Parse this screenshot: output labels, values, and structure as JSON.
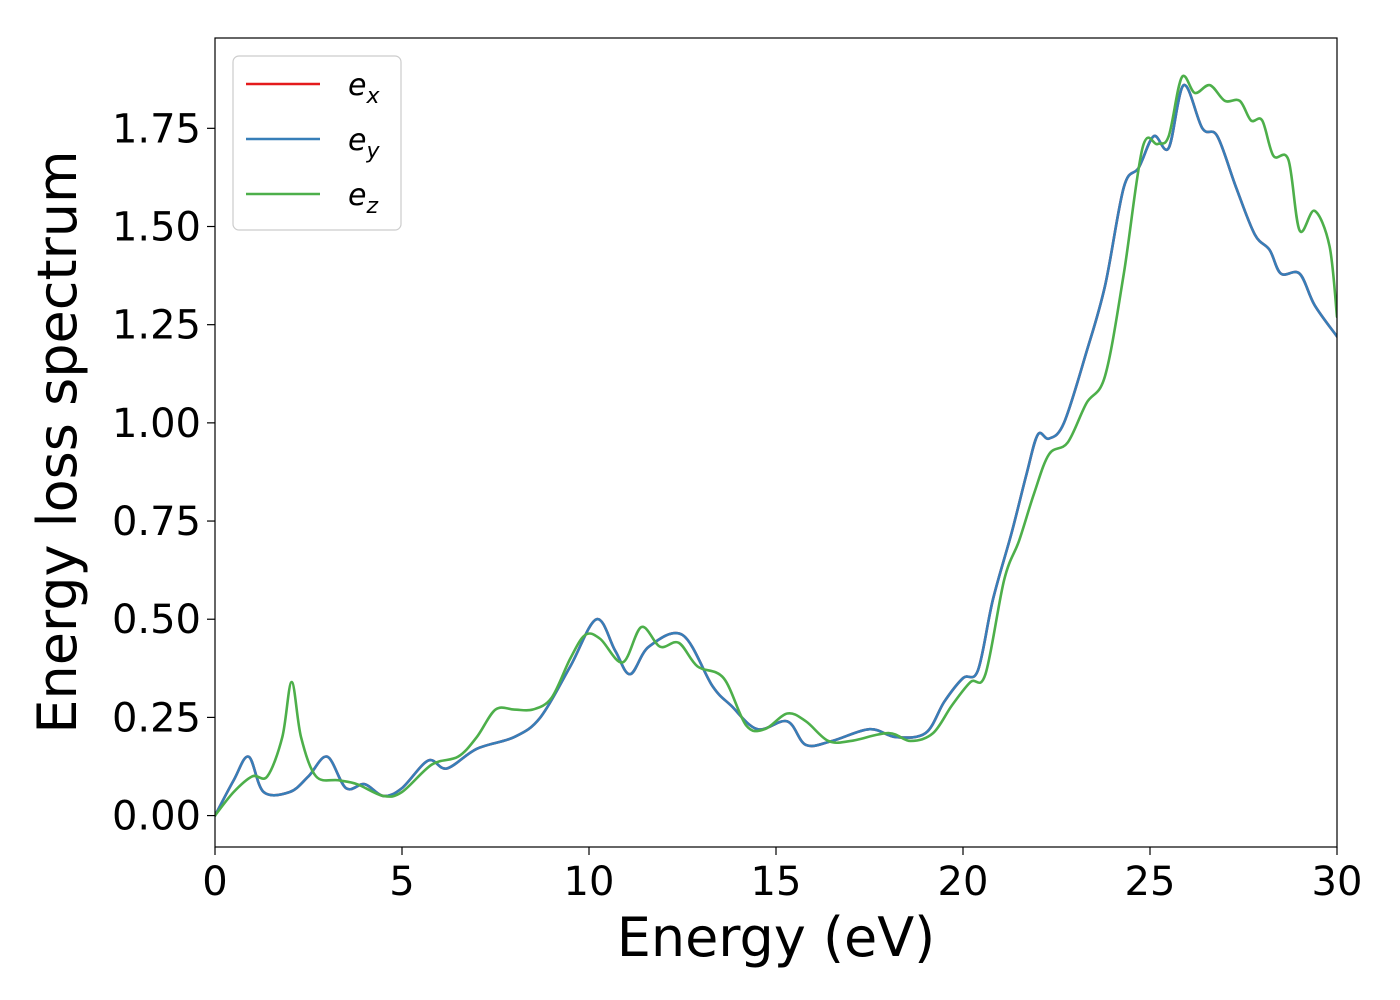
{
  "chart_data": {
    "type": "line",
    "xlabel": "Energy (eV)",
    "ylabel": "Energy loss spectrum",
    "xlim": [
      0,
      30
    ],
    "ylim": [
      -0.08,
      1.98
    ],
    "xticks": [
      0,
      5,
      10,
      15,
      20,
      25,
      30
    ],
    "xtick_labels": [
      "0",
      "5",
      "10",
      "15",
      "20",
      "25",
      "30"
    ],
    "yticks": [
      0.0,
      0.25,
      0.5,
      0.75,
      1.0,
      1.25,
      1.5,
      1.75
    ],
    "ytick_labels": [
      "0.00",
      "0.25",
      "0.50",
      "0.75",
      "1.00",
      "1.25",
      "1.50",
      "1.75"
    ],
    "grid": false,
    "legend": {
      "placement": "top-left",
      "entries": [
        {
          "base": "e",
          "sub": "x",
          "color": "#e41a1c"
        },
        {
          "base": "e",
          "sub": "y",
          "color": "#377eb8"
        },
        {
          "base": "e",
          "sub": "z",
          "color": "#4daf4a"
        }
      ]
    },
    "series": [
      {
        "name": "e_x",
        "color": "#e41a1c",
        "x": [
          0,
          0.5,
          0.9,
          1.3,
          2.0,
          2.5,
          3.0,
          3.5,
          4.0,
          4.5,
          5.0,
          5.7,
          6.2,
          7.0,
          8.0,
          8.7,
          9.5,
          10.2,
          10.7,
          11.1,
          11.6,
          12.5,
          13.3,
          13.8,
          14.5,
          15.3,
          15.8,
          16.5,
          17.5,
          18.2,
          19.0,
          19.5,
          20.0,
          20.4,
          20.8,
          21.3,
          21.7,
          22.0,
          22.3,
          22.7,
          23.3,
          23.8,
          24.3,
          24.7,
          25.1,
          25.5,
          25.9,
          26.4,
          26.8,
          27.3,
          27.8,
          28.2,
          28.5,
          29.0,
          29.4,
          30.0
        ],
        "y": [
          0.0,
          0.09,
          0.15,
          0.06,
          0.06,
          0.1,
          0.15,
          0.07,
          0.08,
          0.05,
          0.07,
          0.14,
          0.12,
          0.17,
          0.2,
          0.25,
          0.38,
          0.5,
          0.42,
          0.36,
          0.43,
          0.46,
          0.33,
          0.28,
          0.22,
          0.24,
          0.18,
          0.19,
          0.22,
          0.2,
          0.21,
          0.29,
          0.35,
          0.37,
          0.55,
          0.72,
          0.87,
          0.97,
          0.96,
          1.0,
          1.18,
          1.35,
          1.6,
          1.65,
          1.73,
          1.7,
          1.86,
          1.75,
          1.73,
          1.6,
          1.48,
          1.44,
          1.38,
          1.38,
          1.3,
          1.22
        ]
      },
      {
        "name": "e_y",
        "color": "#377eb8",
        "x": [
          0,
          0.5,
          0.9,
          1.3,
          2.0,
          2.5,
          3.0,
          3.5,
          4.0,
          4.5,
          5.0,
          5.7,
          6.2,
          7.0,
          8.0,
          8.7,
          9.5,
          10.2,
          10.7,
          11.1,
          11.6,
          12.5,
          13.3,
          13.8,
          14.5,
          15.3,
          15.8,
          16.5,
          17.5,
          18.2,
          19.0,
          19.5,
          20.0,
          20.4,
          20.8,
          21.3,
          21.7,
          22.0,
          22.3,
          22.7,
          23.3,
          23.8,
          24.3,
          24.7,
          25.1,
          25.5,
          25.9,
          26.4,
          26.8,
          27.3,
          27.8,
          28.2,
          28.5,
          29.0,
          29.4,
          30.0
        ],
        "y": [
          0.0,
          0.09,
          0.15,
          0.06,
          0.06,
          0.1,
          0.15,
          0.07,
          0.08,
          0.05,
          0.07,
          0.14,
          0.12,
          0.17,
          0.2,
          0.25,
          0.38,
          0.5,
          0.42,
          0.36,
          0.43,
          0.46,
          0.33,
          0.28,
          0.22,
          0.24,
          0.18,
          0.19,
          0.22,
          0.2,
          0.21,
          0.29,
          0.35,
          0.37,
          0.55,
          0.72,
          0.87,
          0.97,
          0.96,
          1.0,
          1.18,
          1.35,
          1.6,
          1.65,
          1.73,
          1.7,
          1.86,
          1.75,
          1.73,
          1.6,
          1.48,
          1.44,
          1.38,
          1.38,
          1.3,
          1.22
        ]
      },
      {
        "name": "e_z",
        "color": "#4daf4a",
        "x": [
          0,
          0.5,
          1.0,
          1.4,
          1.8,
          2.05,
          2.3,
          2.7,
          3.3,
          3.8,
          4.5,
          5.0,
          5.8,
          6.5,
          7.0,
          7.5,
          8.0,
          8.5,
          9.0,
          9.5,
          9.9,
          10.3,
          10.9,
          11.4,
          11.9,
          12.4,
          12.9,
          13.6,
          14.2,
          14.7,
          15.3,
          15.8,
          16.4,
          17.0,
          18.0,
          18.6,
          19.2,
          19.7,
          20.2,
          20.6,
          21.1,
          21.5,
          21.9,
          22.3,
          22.8,
          23.3,
          23.8,
          24.3,
          24.8,
          25.2,
          25.5,
          25.85,
          26.2,
          26.6,
          27.0,
          27.4,
          27.7,
          28.0,
          28.3,
          28.7,
          29.0,
          29.4,
          29.8,
          30.0
        ],
        "y": [
          0.0,
          0.06,
          0.1,
          0.1,
          0.2,
          0.34,
          0.2,
          0.1,
          0.09,
          0.08,
          0.05,
          0.06,
          0.13,
          0.15,
          0.2,
          0.27,
          0.27,
          0.27,
          0.3,
          0.4,
          0.46,
          0.45,
          0.39,
          0.48,
          0.43,
          0.44,
          0.38,
          0.35,
          0.23,
          0.22,
          0.26,
          0.24,
          0.19,
          0.19,
          0.21,
          0.19,
          0.21,
          0.28,
          0.34,
          0.36,
          0.6,
          0.7,
          0.82,
          0.92,
          0.95,
          1.05,
          1.12,
          1.38,
          1.7,
          1.71,
          1.73,
          1.88,
          1.84,
          1.86,
          1.82,
          1.82,
          1.77,
          1.77,
          1.68,
          1.67,
          1.49,
          1.54,
          1.45,
          1.27
        ]
      }
    ]
  }
}
